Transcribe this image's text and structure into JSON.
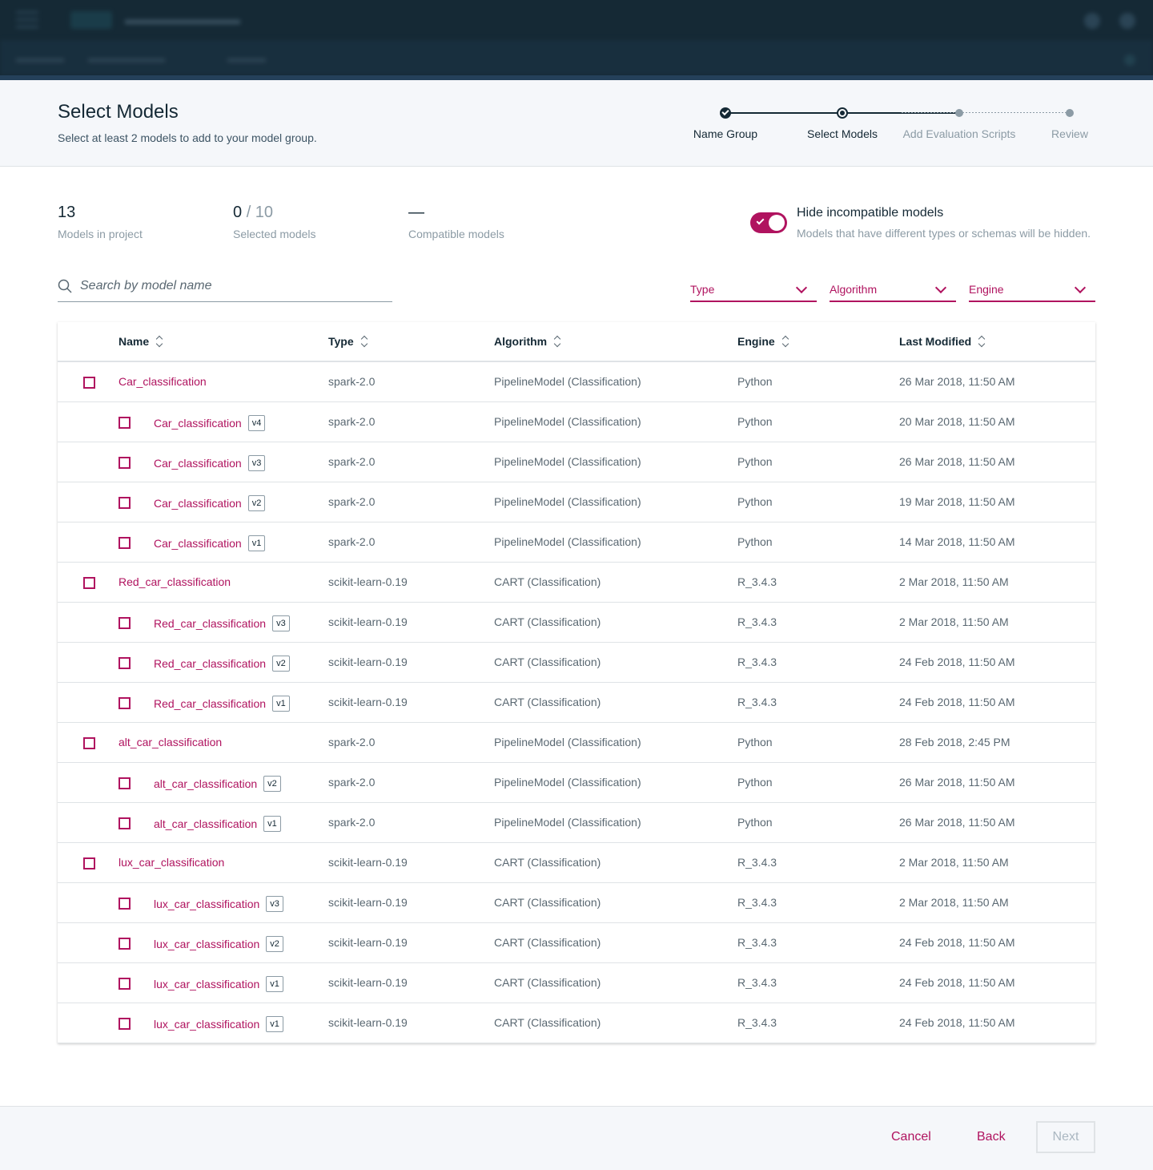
{
  "header": {
    "title": "Select Models",
    "subtitle": "Select at least 2 models to add to your model group."
  },
  "stepper": {
    "steps": [
      {
        "label": "Name Group",
        "state": "done"
      },
      {
        "label": "Select Models",
        "state": "current"
      },
      {
        "label": "Add Evaluation Scripts",
        "state": "future"
      },
      {
        "label": "Review",
        "state": "future"
      }
    ]
  },
  "stats": {
    "models_in_project": {
      "value": "13",
      "label": "Models in project"
    },
    "selected": {
      "value": "0",
      "total": "/ 10",
      "label": "Selected models"
    },
    "compatible": {
      "value": "—",
      "label": "Compatible models"
    }
  },
  "toggle": {
    "title": "Hide incompatible models",
    "description": "Models that have different types or schemas will be hidden.",
    "on": true
  },
  "search": {
    "placeholder": "Search by model name",
    "value": ""
  },
  "filters": {
    "type": "Type",
    "algorithm": "Algorithm",
    "engine": "Engine"
  },
  "table": {
    "headers": {
      "name": "Name",
      "type": "Type",
      "algorithm": "Algorithm",
      "engine": "Engine",
      "last_modified": "Last Modified"
    },
    "rows": [
      {
        "level": 0,
        "name": "Car_classification",
        "version": "",
        "type": "spark-2.0",
        "algorithm": "PipelineModel (Classification)",
        "engine": "Python",
        "modified": "26 Mar 2018, 11:50 AM"
      },
      {
        "level": 1,
        "name": "Car_classification",
        "version": "v4",
        "type": "spark-2.0",
        "algorithm": "PipelineModel (Classification)",
        "engine": "Python",
        "modified": "20 Mar 2018, 11:50 AM"
      },
      {
        "level": 1,
        "name": "Car_classification",
        "version": "v3",
        "type": "spark-2.0",
        "algorithm": "PipelineModel (Classification)",
        "engine": "Python",
        "modified": "26 Mar 2018, 11:50 AM"
      },
      {
        "level": 1,
        "name": "Car_classification",
        "version": "v2",
        "type": "spark-2.0",
        "algorithm": "PipelineModel (Classification)",
        "engine": "Python",
        "modified": "19 Mar 2018, 11:50 AM"
      },
      {
        "level": 1,
        "name": "Car_classification",
        "version": "v1",
        "type": "spark-2.0",
        "algorithm": "PipelineModel (Classification)",
        "engine": "Python",
        "modified": "14 Mar 2018, 11:50 AM"
      },
      {
        "level": 0,
        "name": "Red_car_classification",
        "version": "",
        "type": "scikit-learn-0.19",
        "algorithm": "CART (Classification)",
        "engine": "R_3.4.3",
        "modified": "2 Mar 2018, 11:50 AM"
      },
      {
        "level": 1,
        "name": "Red_car_classification",
        "version": "v3",
        "type": "scikit-learn-0.19",
        "algorithm": "CART (Classification)",
        "engine": "R_3.4.3",
        "modified": "2 Mar 2018, 11:50 AM"
      },
      {
        "level": 1,
        "name": "Red_car_classification",
        "version": "v2",
        "type": "scikit-learn-0.19",
        "algorithm": "CART (Classification)",
        "engine": "R_3.4.3",
        "modified": "24 Feb 2018, 11:50 AM"
      },
      {
        "level": 1,
        "name": "Red_car_classification",
        "version": "v1",
        "type": "scikit-learn-0.19",
        "algorithm": "CART (Classification)",
        "engine": "R_3.4.3",
        "modified": "24 Feb 2018, 11:50 AM"
      },
      {
        "level": 0,
        "name": "alt_car_classification",
        "version": "",
        "type": "spark-2.0",
        "algorithm": "PipelineModel (Classification)",
        "engine": "Python",
        "modified": "28 Feb 2018, 2:45 PM"
      },
      {
        "level": 1,
        "name": "alt_car_classification",
        "version": "v2",
        "type": "spark-2.0",
        "algorithm": "PipelineModel (Classification)",
        "engine": "Python",
        "modified": "26 Mar 2018, 11:50 AM"
      },
      {
        "level": 1,
        "name": "alt_car_classification",
        "version": "v1",
        "type": "spark-2.0",
        "algorithm": "PipelineModel (Classification)",
        "engine": "Python",
        "modified": "26 Mar 2018, 11:50 AM"
      },
      {
        "level": 0,
        "name": "lux_car_classification",
        "version": "",
        "type": "scikit-learn-0.19",
        "algorithm": "CART (Classification)",
        "engine": "R_3.4.3",
        "modified": "2 Mar 2018, 11:50 AM"
      },
      {
        "level": 1,
        "name": "lux_car_classification",
        "version": "v3",
        "type": "scikit-learn-0.19",
        "algorithm": "CART (Classification)",
        "engine": "R_3.4.3",
        "modified": "2 Mar 2018, 11:50 AM"
      },
      {
        "level": 1,
        "name": "lux_car_classification",
        "version": "v2",
        "type": "scikit-learn-0.19",
        "algorithm": "CART (Classification)",
        "engine": "R_3.4.3",
        "modified": "24 Feb 2018, 11:50 AM"
      },
      {
        "level": 1,
        "name": "lux_car_classification",
        "version": "v1",
        "type": "scikit-learn-0.19",
        "algorithm": "CART (Classification)",
        "engine": "R_3.4.3",
        "modified": "24 Feb 2018, 11:50 AM"
      },
      {
        "level": 1,
        "name": "lux_car_classification",
        "version": "v1",
        "type": "scikit-learn-0.19",
        "algorithm": "CART (Classification)",
        "engine": "R_3.4.3",
        "modified": "24 Feb 2018, 11:50 AM"
      }
    ]
  },
  "footer": {
    "cancel": "Cancel",
    "back": "Back",
    "next": "Next"
  },
  "colors": {
    "accent": "#b0135f",
    "text": "#152935",
    "muted": "#8c9ba5",
    "topbar": "#152935"
  },
  "icons": {
    "search": "search-icon",
    "dropdown": "chevron-down-icon",
    "sort": "sort-icon",
    "toggle_check": "checkmark-icon"
  }
}
